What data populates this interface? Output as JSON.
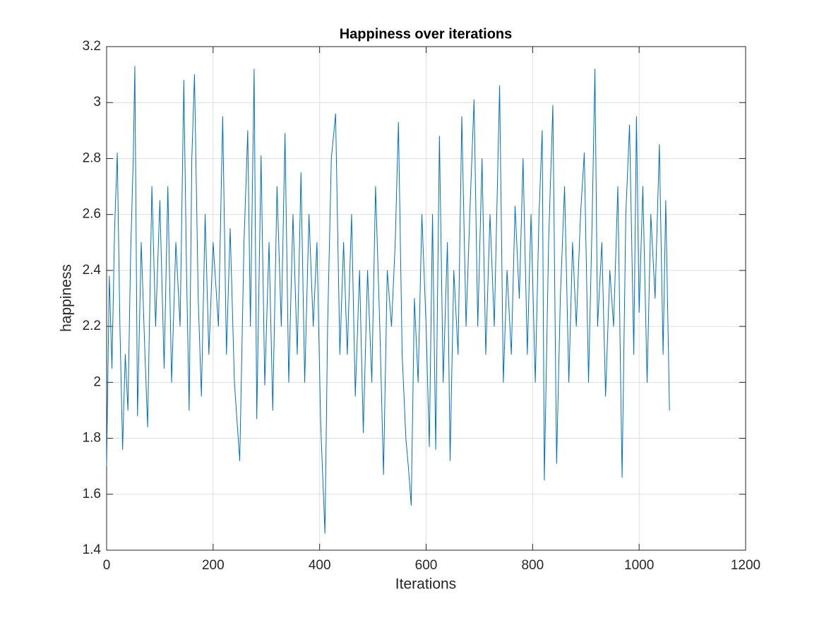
{
  "chart_data": {
    "type": "line",
    "title": "Happiness over iterations",
    "xlabel": "Iterations",
    "ylabel": "happiness",
    "x": [
      0,
      5,
      10,
      15,
      20,
      25,
      30,
      35,
      40,
      45,
      50,
      53,
      58,
      65,
      72,
      77,
      85,
      92,
      100,
      108,
      115,
      122,
      130,
      138,
      145,
      150,
      155,
      160,
      165,
      172,
      178,
      185,
      192,
      200,
      210,
      218,
      225,
      232,
      240,
      250,
      258,
      265,
      270,
      277,
      282,
      290,
      297,
      305,
      312,
      320,
      328,
      335,
      342,
      350,
      358,
      365,
      372,
      380,
      388,
      395,
      402,
      410,
      415,
      422,
      430,
      438,
      445,
      452,
      460,
      467,
      475,
      482,
      490,
      498,
      505,
      513,
      520,
      527,
      535,
      542,
      548,
      555,
      562,
      567,
      572,
      578,
      585,
      592,
      600,
      606,
      612,
      618,
      625,
      632,
      640,
      645,
      652,
      660,
      667,
      675,
      682,
      690,
      697,
      705,
      712,
      720,
      728,
      738,
      745,
      752,
      760,
      767,
      775,
      782,
      790,
      797,
      805,
      812,
      818,
      822,
      830,
      838,
      845,
      852,
      860,
      868,
      875,
      882,
      890,
      897,
      905,
      912,
      917,
      922,
      930,
      937,
      945,
      952,
      960,
      968,
      975,
      982,
      990,
      995,
      1000,
      1007,
      1015,
      1022,
      1030,
      1038,
      1045,
      1050,
      1057
    ],
    "series": [
      {
        "name": "happiness",
        "color": "#0072bd",
        "values": [
          1.7,
          2.38,
          2.05,
          2.55,
          2.82,
          2.2,
          1.76,
          2.1,
          1.9,
          2.45,
          2.8,
          3.13,
          1.88,
          2.5,
          2.1,
          1.84,
          2.7,
          2.2,
          2.65,
          2.05,
          2.7,
          2.0,
          2.5,
          2.2,
          3.08,
          2.4,
          1.9,
          2.8,
          3.1,
          2.3,
          1.95,
          2.6,
          2.1,
          2.5,
          2.2,
          2.95,
          2.1,
          2.55,
          2.0,
          1.72,
          2.5,
          2.9,
          2.2,
          3.12,
          1.87,
          2.81,
          1.99,
          2.5,
          1.9,
          2.7,
          2.2,
          2.89,
          2.0,
          2.6,
          2.1,
          2.75,
          2.0,
          2.6,
          2.2,
          2.5,
          1.85,
          1.46,
          2.2,
          2.8,
          2.96,
          2.1,
          2.5,
          2.1,
          2.6,
          1.95,
          2.4,
          1.82,
          2.4,
          2.0,
          2.7,
          2.2,
          1.67,
          2.4,
          2.2,
          2.5,
          2.93,
          2.1,
          1.8,
          1.69,
          1.56,
          2.3,
          2.0,
          2.6,
          2.2,
          1.77,
          2.6,
          1.76,
          2.88,
          2.0,
          2.5,
          1.72,
          2.4,
          2.1,
          2.95,
          2.2,
          2.6,
          3.01,
          2.2,
          2.8,
          2.1,
          2.6,
          2.2,
          3.06,
          2.0,
          2.4,
          2.1,
          2.63,
          2.3,
          2.8,
          2.1,
          2.6,
          2.0,
          2.6,
          2.9,
          1.65,
          2.5,
          2.99,
          1.71,
          2.3,
          2.7,
          2.0,
          2.5,
          2.2,
          2.6,
          2.82,
          2.0,
          2.6,
          3.12,
          2.2,
          2.5,
          1.95,
          2.4,
          2.2,
          2.7,
          1.66,
          2.6,
          2.92,
          2.1,
          2.95,
          2.25,
          2.7,
          2.0,
          2.6,
          2.3,
          2.85,
          2.1,
          2.65,
          1.9
        ]
      }
    ],
    "xlim": [
      0,
      1200
    ],
    "xticks": [
      0,
      200,
      400,
      600,
      800,
      1000,
      1200
    ],
    "ylim": [
      1.4,
      3.2
    ],
    "yticks": [
      1.4,
      1.6,
      1.8,
      2,
      2.2,
      2.4,
      2.6,
      2.8,
      3,
      3.2
    ],
    "grid": true
  }
}
